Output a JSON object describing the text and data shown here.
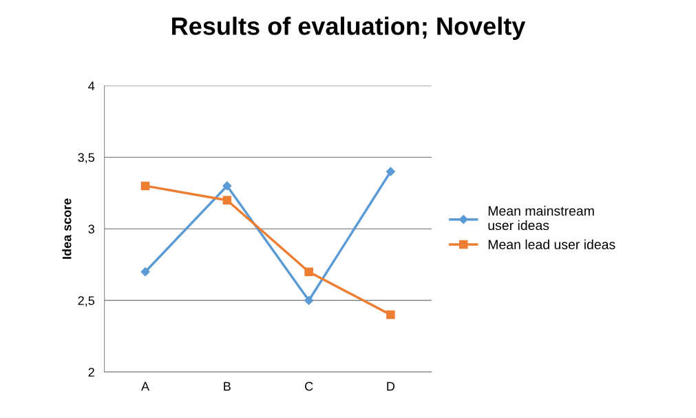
{
  "chart_data": {
    "type": "line",
    "title": "Results of evaluation; Novelty",
    "ylabel": "Idea score",
    "categories": [
      "A",
      "B",
      "C",
      "D"
    ],
    "series": [
      {
        "name": "Mean mainstream\nuser ideas",
        "color": "#5b9bd5",
        "values": [
          2.7,
          3.3,
          2.5,
          3.4
        ],
        "marker": "diamond"
      },
      {
        "name": "Mean lead user ideas",
        "color": "#ed7d31",
        "values": [
          3.3,
          3.2,
          2.7,
          2.4
        ],
        "marker": "square"
      }
    ],
    "ylim": [
      2,
      4
    ],
    "yticks": [
      2,
      {
        "value": 2.5,
        "label": "2,5"
      },
      3,
      {
        "value": 3.5,
        "label": "3,5"
      },
      4
    ],
    "grid": "y",
    "legend": "right",
    "line_style": "solid"
  }
}
